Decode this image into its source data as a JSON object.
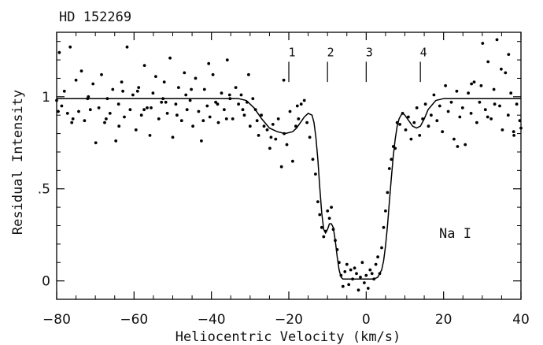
{
  "chart_data": {
    "type": "scatter",
    "title": "HD 152269",
    "xlabel": "Heliocentric Velocity (km/s)",
    "ylabel": "Residual Intensity",
    "xlim": [
      -80,
      40
    ],
    "ylim": [
      -0.1,
      1.35
    ],
    "x_ticks": [
      -80,
      -60,
      -40,
      -20,
      0,
      20,
      40
    ],
    "x_tick_labels": [
      "−80",
      "−60",
      "−40",
      "−20",
      "0",
      "20",
      "40"
    ],
    "y_ticks": [
      0,
      0.5,
      1
    ],
    "y_tick_labels": [
      "0",
      ".5",
      "1"
    ],
    "annotation": "Na I",
    "components": [
      {
        "label": "1",
        "x": -20
      },
      {
        "label": "2",
        "x": -10
      },
      {
        "label": "3",
        "x": 0
      },
      {
        "label": "4",
        "x": 14
      }
    ],
    "series": [
      {
        "kind": "fit-line",
        "x": [
          -80,
          -60,
          -40,
          -33,
          -31,
          -29,
          -27,
          -25,
          -23,
          -21,
          -19,
          -18,
          -17,
          -16,
          -15,
          -14,
          -13.5,
          -13,
          -12.5,
          -12,
          -11.5,
          -11,
          -10.5,
          -10,
          -9.5,
          -9,
          -8.5,
          -8,
          -7.5,
          -7,
          -6.5,
          -6,
          -5,
          -3,
          0,
          2,
          3,
          4,
          4.5,
          5,
          5.5,
          6,
          6.5,
          7,
          7.5,
          8,
          8.5,
          9,
          9.5,
          10,
          11,
          12,
          13,
          14,
          15,
          16,
          18,
          20,
          40
        ],
        "y": [
          0.99,
          0.99,
          0.99,
          0.99,
          0.98,
          0.94,
          0.88,
          0.83,
          0.81,
          0.8,
          0.81,
          0.83,
          0.86,
          0.89,
          0.91,
          0.9,
          0.86,
          0.78,
          0.66,
          0.51,
          0.37,
          0.28,
          0.26,
          0.28,
          0.31,
          0.31,
          0.29,
          0.22,
          0.13,
          0.06,
          0.02,
          0.01,
          0.01,
          0.01,
          0.01,
          0.01,
          0.02,
          0.06,
          0.11,
          0.19,
          0.3,
          0.43,
          0.56,
          0.68,
          0.77,
          0.84,
          0.88,
          0.9,
          0.91,
          0.9,
          0.87,
          0.84,
          0.83,
          0.84,
          0.88,
          0.93,
          0.98,
          0.99,
          0.99
        ]
      },
      {
        "kind": "data-points",
        "x": [
          -80,
          -79.3,
          -78.7,
          -78,
          -77.2,
          -76.5,
          -75.8,
          -75,
          -74.3,
          -73.6,
          -72.8,
          -72,
          -71.3,
          -70.6,
          -69.9,
          -69.1,
          -68.4,
          -67.6,
          -66.9,
          -66.2,
          -65.5,
          -64.7,
          -64,
          -63.2,
          -62.5,
          -61.8,
          -61,
          -60.3,
          -59.5,
          -58.8,
          -58.1,
          -57.3,
          -56.6,
          -55.9,
          -55.1,
          -54.4,
          -53.6,
          -52.9,
          -52.2,
          -51.4,
          -50.7,
          -50,
          -49.2,
          -48.5,
          -47.7,
          -47,
          -46.3,
          -45.5,
          -44.8,
          -44.1,
          -43.3,
          -42.6,
          -41.8,
          -41.1,
          -40.4,
          -39.6,
          -38.9,
          -38.2,
          -37.4,
          -36.7,
          -35.9,
          -35.2,
          -34.5,
          -33.7,
          -33,
          -32.3,
          -31.5,
          -30.8,
          -30,
          -29.3,
          -28.6,
          -27.8,
          -27.1,
          -26.4,
          -25.6,
          -24.9,
          -24.1,
          -23.4,
          -22.7,
          -21.9,
          -21.2,
          -20.5,
          -19.7,
          -19,
          -18.2,
          -17.5,
          -16.8,
          -16,
          -15.3,
          -14.6,
          -13.8,
          -13.1,
          -12.5,
          -12,
          -11.5,
          -11,
          -10.5,
          -10,
          -9.5,
          -9,
          -8.5,
          -8,
          -7.5,
          -7,
          -6.5,
          -6,
          -5.5,
          -5,
          -4.5,
          -4,
          -3.5,
          -3,
          -2.5,
          -2,
          -1.5,
          -1,
          -0.5,
          0,
          0.5,
          1,
          1.5,
          2,
          2.5,
          3,
          3.5,
          4,
          4.5,
          5,
          5.5,
          6,
          6.5,
          7,
          7.5,
          8,
          8.7,
          9.4,
          10.2,
          10.9,
          11.6,
          12.4,
          13.1,
          13.8,
          14.6,
          15.3,
          16.1,
          16.8,
          17.5,
          18.3,
          19,
          19.7,
          20.5,
          21.2,
          22,
          22.7,
          23.4,
          24.2,
          24.9,
          25.6,
          26.4,
          27.1,
          27.9,
          28.6,
          29.3,
          30.1,
          30.8,
          31.5,
          32.3,
          33,
          33.8,
          34.5,
          35.2,
          36,
          36.7,
          37.4,
          38.2,
          38.9,
          39.7,
          40,
          -79.6,
          -76.1,
          -71.8,
          -67.2,
          -63.9,
          -59.1,
          -55.6,
          -52.5,
          -48.9,
          -45.2,
          -42.1,
          -38.4,
          -35.3,
          -31.9,
          -28.2,
          -24.6,
          -21.3,
          -17.8,
          23.6,
          27.2,
          31.4,
          34.9,
          38.1,
          -62.9,
          -57.4,
          -51.8,
          -46.6,
          -40.7,
          -36.1,
          -30.4,
          29.7,
          33.2,
          36.8
        ],
        "y": [
          0.98,
          1.24,
          0.95,
          1.03,
          0.91,
          1.27,
          0.88,
          1.09,
          0.92,
          1.14,
          0.87,
          0.99,
          0.93,
          1.07,
          0.75,
          0.94,
          1.12,
          0.86,
          0.99,
          0.91,
          1.04,
          0.76,
          0.96,
          1.08,
          0.89,
          1.27,
          0.93,
          1.01,
          0.82,
          1.05,
          0.9,
          1.17,
          0.94,
          0.79,
          1.02,
          1.11,
          0.88,
          0.97,
          1.08,
          0.91,
          1.21,
          0.78,
          0.96,
          1.05,
          0.87,
          1.13,
          0.93,
          0.98,
          0.84,
          1.1,
          0.92,
          0.76,
          1.04,
          0.95,
          0.89,
          1.12,
          0.97,
          0.86,
          1.02,
          0.93,
          1.2,
          0.99,
          0.88,
          1.05,
          0.96,
          1.01,
          0.9,
          0.97,
          0.84,
          0.99,
          0.93,
          0.79,
          0.9,
          0.84,
          0.82,
          0.72,
          0.85,
          0.77,
          0.88,
          0.62,
          0.8,
          0.74,
          0.92,
          0.65,
          0.84,
          0.88,
          0.96,
          0.98,
          0.86,
          0.78,
          0.66,
          0.58,
          0.43,
          0.36,
          0.29,
          0.24,
          0.27,
          0.38,
          0.34,
          0.4,
          0.28,
          0.22,
          0.17,
          0.1,
          0.03,
          -0.03,
          0.05,
          0.09,
          -0.02,
          0.06,
          0.01,
          0.07,
          0.04,
          -0.05,
          0.02,
          0.1,
          -0.01,
          0.03,
          -0.04,
          0.06,
          0.04,
          0.01,
          0.09,
          0.13,
          0.04,
          0.18,
          0.29,
          0.38,
          0.48,
          0.61,
          0.66,
          0.73,
          0.72,
          0.86,
          0.85,
          0.91,
          0.82,
          0.89,
          0.77,
          0.86,
          0.94,
          0.79,
          0.88,
          0.96,
          0.84,
          0.9,
          1.01,
          0.87,
          0.95,
          0.81,
          1.06,
          0.92,
          0.97,
          0.77,
          1.03,
          0.89,
          0.94,
          0.74,
          1.02,
          0.91,
          1.08,
          0.86,
          0.97,
          1.29,
          0.93,
          1.19,
          0.88,
          1.04,
          1.31,
          0.95,
          0.82,
          1.13,
          0.9,
          1.02,
          0.79,
          0.96,
          0.87,
          0.83,
          0.92,
          0.86,
          1.0,
          0.88,
          0.84,
          1.03,
          0.94,
          0.99,
          0.9,
          1.04,
          0.87,
          0.96,
          1.01,
          0.93,
          0.87,
          0.78,
          1.09,
          0.95,
          0.73,
          1.07,
          0.89,
          1.15,
          0.81,
          1.03,
          0.93,
          0.97,
          1.01,
          1.18,
          0.88,
          1.12,
          1.06,
          0.96,
          1.23
        ]
      }
    ]
  }
}
